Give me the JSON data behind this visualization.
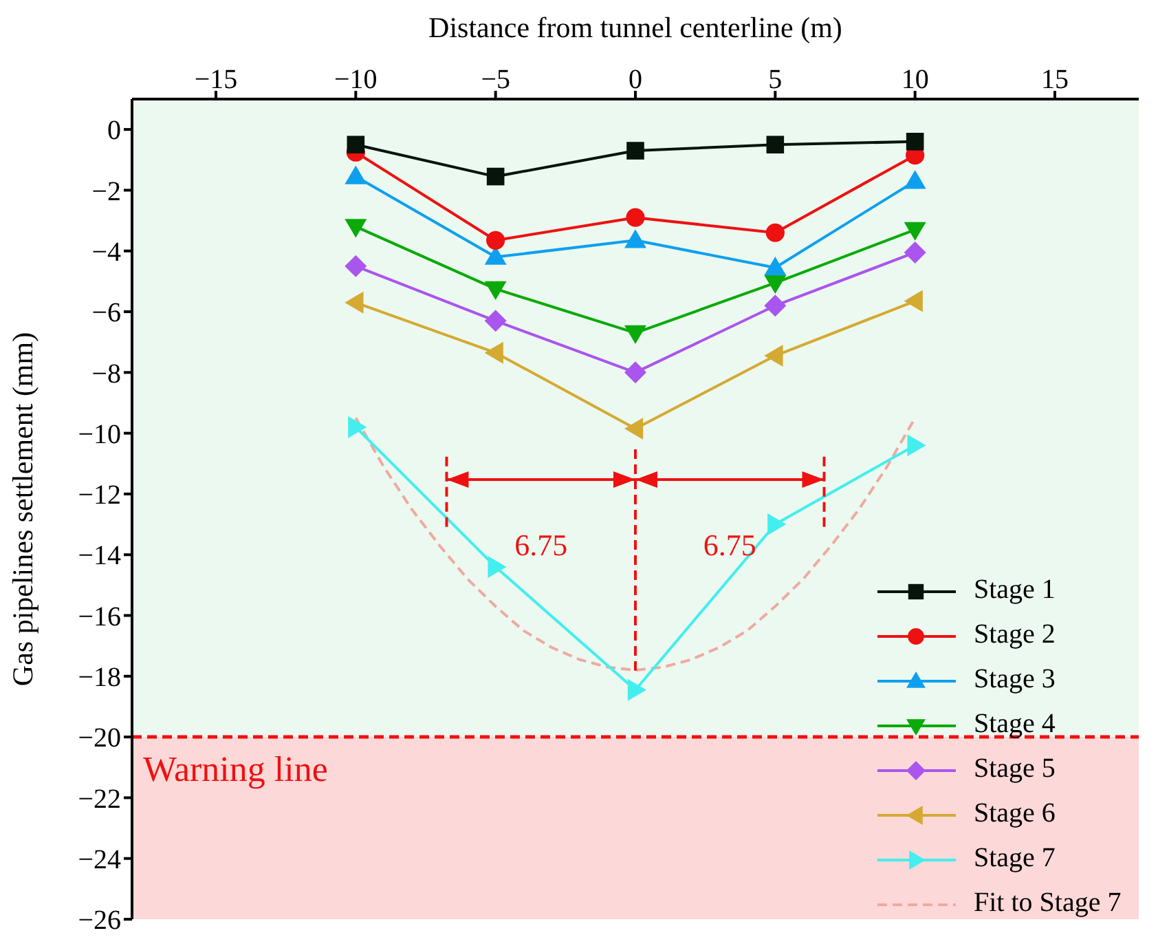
{
  "chart_data": {
    "type": "line",
    "xlabel": "Distance from tunnel centerline (m)",
    "ylabel": "Gas pipelines settlement (mm)",
    "x": [
      -10,
      -5,
      0,
      5,
      10
    ],
    "series": [
      {
        "name": "Stage 1",
        "color": "#06140a",
        "marker": "square",
        "values": [
          -0.5,
          -1.55,
          -0.7,
          -0.5,
          -0.4
        ]
      },
      {
        "name": "Stage 2",
        "color": "#ee1111",
        "marker": "circle",
        "values": [
          -0.75,
          -3.65,
          -2.9,
          -3.4,
          -0.85
        ]
      },
      {
        "name": "Stage 3",
        "color": "#0ea0ee",
        "marker": "triangle",
        "values": [
          -1.55,
          -4.2,
          -3.65,
          -4.55,
          -1.7
        ]
      },
      {
        "name": "Stage 4",
        "color": "#0aaa0a",
        "marker": "triangle-down",
        "values": [
          -3.2,
          -5.25,
          -6.7,
          -5.05,
          -3.3
        ]
      },
      {
        "name": "Stage 5",
        "color": "#aa55ee",
        "marker": "diamond",
        "values": [
          -4.5,
          -6.3,
          -8.0,
          -5.8,
          -4.05
        ]
      },
      {
        "name": "Stage 6",
        "color": "#d4aa33",
        "marker": "triangle-left",
        "values": [
          -5.7,
          -7.35,
          -9.85,
          -7.45,
          -5.65
        ]
      },
      {
        "name": "Stage 7",
        "color": "#44eeee",
        "marker": "triangle-right",
        "values": [
          -9.8,
          -14.4,
          -18.45,
          -13.0,
          -10.4
        ]
      },
      {
        "name": "Fit to Stage 7",
        "type": "line",
        "color": "#eeaaa0",
        "marker": "none",
        "line_style": "dashed",
        "x": [
          -10,
          -9,
          -8,
          -7,
          -6,
          -5,
          -4,
          -3,
          -2,
          -1,
          0,
          1,
          2,
          3,
          4,
          5,
          6,
          7,
          8,
          9,
          10
        ],
        "values": [
          -9.5,
          -11.1,
          -12.5,
          -13.7,
          -14.8,
          -15.7,
          -16.5,
          -17.05,
          -17.45,
          -17.7,
          -17.8,
          -17.7,
          -17.45,
          -17.05,
          -16.5,
          -15.7,
          -14.8,
          -13.7,
          -12.5,
          -11.1,
          -9.5
        ]
      }
    ],
    "xlim": [
      -18,
      18
    ],
    "xticks": [
      -15,
      -10,
      -5,
      0,
      5,
      10,
      15
    ],
    "ylim": [
      -26,
      1
    ],
    "yticks": [
      0,
      -2,
      -4,
      -6,
      -8,
      -10,
      -12,
      -14,
      -16,
      -18,
      -20,
      -22,
      -24,
      -26
    ],
    "bands": [
      {
        "axis": "y",
        "from": 1,
        "to": -20,
        "color": "#ecf9f0"
      },
      {
        "axis": "y",
        "from": -20,
        "to": -26,
        "color": "#fdd8d8"
      }
    ],
    "ref_lines": [
      {
        "axis": "y",
        "value": -20,
        "label": "Warning line",
        "color": "#ee1111",
        "line_style": "dashed"
      },
      {
        "axis": "x",
        "value": -6.75,
        "color": "#ee1111",
        "line_style": "dashed"
      },
      {
        "axis": "x",
        "value": 0,
        "color": "#ee1111",
        "line_style": "dashed"
      },
      {
        "axis": "x",
        "value": 6.75,
        "color": "#ee1111",
        "line_style": "dashed"
      }
    ],
    "annotations": [
      "6.75",
      "6.75"
    ],
    "legend": "bottom right"
  }
}
